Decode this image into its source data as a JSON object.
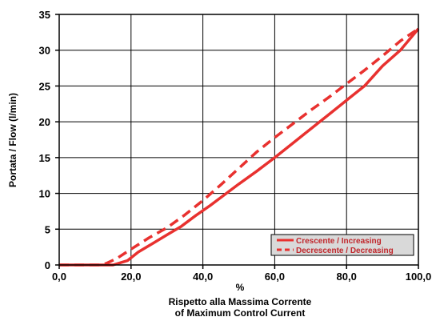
{
  "chart_data": {
    "type": "line",
    "ylabel": "Portata / Flow (l/min)",
    "xlabel_lines": [
      "%",
      "Rispetto alla Massima Corrente",
      "of Maximum Control Current"
    ],
    "xlim": [
      0,
      100
    ],
    "ylim": [
      0,
      35
    ],
    "x_ticks": [
      0,
      20,
      40,
      60,
      80,
      100
    ],
    "x_tick_labels": [
      "0,0",
      "20,0",
      "40,0",
      "60,0",
      "80,0",
      "100,0"
    ],
    "y_ticks": [
      0,
      5,
      10,
      15,
      20,
      25,
      30,
      35
    ],
    "y_tick_labels": [
      "0",
      "5",
      "10",
      "15",
      "20",
      "25",
      "30",
      "35"
    ],
    "grid": true,
    "legend_position": "bottom-right",
    "series": [
      {
        "name": "Crescente / Increasing",
        "style": "solid",
        "color": "#e8312f",
        "points": [
          [
            0,
            0
          ],
          [
            12,
            0
          ],
          [
            15,
            0
          ],
          [
            19,
            0.6
          ],
          [
            22,
            1.8
          ],
          [
            26,
            3.0
          ],
          [
            30,
            4.2
          ],
          [
            34,
            5.4
          ],
          [
            38,
            6.9
          ],
          [
            42,
            8.3
          ],
          [
            46,
            9.8
          ],
          [
            50,
            11.3
          ],
          [
            55,
            13.1
          ],
          [
            60,
            15.0
          ],
          [
            65,
            17.0
          ],
          [
            70,
            19.0
          ],
          [
            75,
            21.0
          ],
          [
            80,
            23.0
          ],
          [
            85,
            25.0
          ],
          [
            90,
            27.8
          ],
          [
            95,
            30.0
          ],
          [
            100,
            33.0
          ]
        ]
      },
      {
        "name": "Decrescente / Decreasing",
        "style": "dashed",
        "color": "#e8312f",
        "points": [
          [
            0,
            0
          ],
          [
            11,
            0
          ],
          [
            13,
            0.2
          ],
          [
            16,
            0.9
          ],
          [
            20,
            2.2
          ],
          [
            25,
            3.8
          ],
          [
            30,
            5.2
          ],
          [
            35,
            7.0
          ],
          [
            40,
            9.0
          ],
          [
            45,
            11.2
          ],
          [
            50,
            13.5
          ],
          [
            55,
            15.8
          ],
          [
            60,
            17.8
          ],
          [
            65,
            19.7
          ],
          [
            70,
            21.6
          ],
          [
            75,
            23.4
          ],
          [
            80,
            25.3
          ],
          [
            85,
            27.2
          ],
          [
            90,
            29.2
          ],
          [
            95,
            31.3
          ],
          [
            100,
            33.0
          ]
        ]
      }
    ]
  }
}
